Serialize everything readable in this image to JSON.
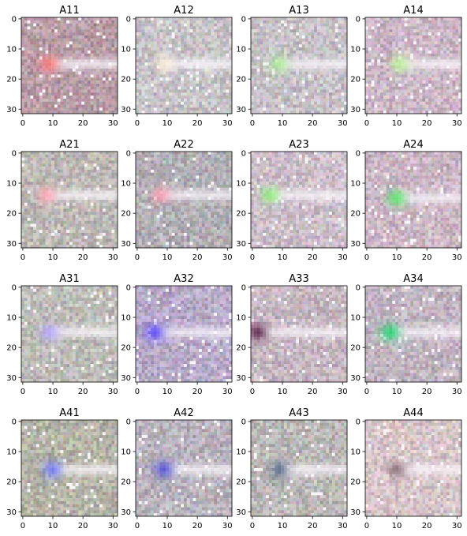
{
  "chart_data": {
    "type": "heatmap",
    "layout": "4x4 grid of image subplots",
    "image_size": [
      32,
      32
    ],
    "xlim": [
      0,
      31
    ],
    "ylim": [
      0,
      31
    ],
    "y_inverted": true,
    "x_ticks": [
      0,
      10,
      20,
      30
    ],
    "y_ticks": [
      0,
      10,
      20,
      30
    ],
    "grid": false,
    "panels": [
      {
        "title": "A11",
        "spot_color": "#ff7a7a",
        "spot_x": 9,
        "spot_y": 15,
        "tint": "#b89ba5"
      },
      {
        "title": "A12",
        "spot_color": "#fff0d8",
        "spot_x": 9,
        "spot_y": 15,
        "tint": "#c6c2c6"
      },
      {
        "title": "A13",
        "spot_color": "#aef09a",
        "spot_x": 9,
        "spot_y": 15,
        "tint": "#c6c0c6"
      },
      {
        "title": "A14",
        "spot_color": "#bff59a",
        "spot_x": 11,
        "spot_y": 15,
        "tint": "#cab5c4"
      },
      {
        "title": "A21",
        "spot_color": "#ffa5b5",
        "spot_x": 8,
        "spot_y": 14,
        "tint": "#bcb7b4"
      },
      {
        "title": "A22",
        "spot_color": "#ff9fb2",
        "spot_x": 8,
        "spot_y": 14,
        "tint": "#b1aeb4"
      },
      {
        "title": "A23",
        "spot_color": "#90f07e",
        "spot_x": 6,
        "spot_y": 14,
        "tint": "#cbbdc8"
      },
      {
        "title": "A24",
        "spot_color": "#55e66a",
        "spot_x": 10,
        "spot_y": 15,
        "tint": "#cbb6c4"
      },
      {
        "title": "A31",
        "spot_color": "#b7a5ff",
        "spot_x": 9,
        "spot_y": 15,
        "tint": "#bdbcb8"
      },
      {
        "title": "A32",
        "spot_color": "#5a46ff",
        "spot_x": 6,
        "spot_y": 15,
        "tint": "#b7a9c8"
      },
      {
        "title": "A33",
        "spot_color": "#5a1f46",
        "spot_x": 2,
        "spot_y": 15,
        "tint": "#c5b6c0"
      },
      {
        "title": "A34",
        "spot_color": "#1ed66f",
        "spot_x": 8,
        "spot_y": 15,
        "tint": "#c0b3c0"
      },
      {
        "title": "A41",
        "spot_color": "#6e7bff",
        "spot_x": 10,
        "spot_y": 16,
        "tint": "#b4b3a6"
      },
      {
        "title": "A42",
        "spot_color": "#4e4cd6",
        "spot_x": 9,
        "spot_y": 16,
        "tint": "#b7b1bb"
      },
      {
        "title": "A43",
        "spot_color": "#5a6a8c",
        "spot_x": 9,
        "spot_y": 16,
        "tint": "#b9b6b5"
      },
      {
        "title": "A44",
        "spot_color": "#8c6e78",
        "spot_x": 10,
        "spot_y": 16,
        "tint": "#d6c4c8"
      }
    ]
  }
}
